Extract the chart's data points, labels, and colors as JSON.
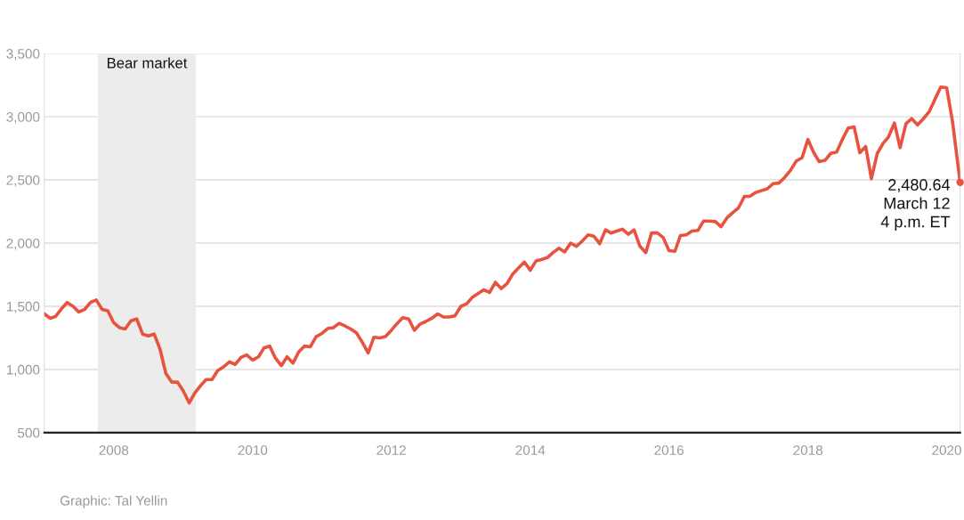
{
  "chart_data": {
    "type": "line",
    "x": [
      "2007-01",
      "2007-02",
      "2007-03",
      "2007-04",
      "2007-05",
      "2007-06",
      "2007-07",
      "2007-08",
      "2007-09",
      "2007-10",
      "2007-11",
      "2007-12",
      "2008-01",
      "2008-02",
      "2008-03",
      "2008-04",
      "2008-05",
      "2008-06",
      "2008-07",
      "2008-08",
      "2008-09",
      "2008-10",
      "2008-11",
      "2008-12",
      "2009-01",
      "2009-02",
      "2009-03",
      "2009-04",
      "2009-05",
      "2009-06",
      "2009-07",
      "2009-08",
      "2009-09",
      "2009-10",
      "2009-11",
      "2009-12",
      "2010-01",
      "2010-02",
      "2010-03",
      "2010-04",
      "2010-05",
      "2010-06",
      "2010-07",
      "2010-08",
      "2010-09",
      "2010-10",
      "2010-11",
      "2010-12",
      "2011-01",
      "2011-02",
      "2011-03",
      "2011-04",
      "2011-05",
      "2011-06",
      "2011-07",
      "2011-08",
      "2011-09",
      "2011-10",
      "2011-11",
      "2011-12",
      "2012-01",
      "2012-02",
      "2012-03",
      "2012-04",
      "2012-05",
      "2012-06",
      "2012-07",
      "2012-08",
      "2012-09",
      "2012-10",
      "2012-11",
      "2012-12",
      "2013-01",
      "2013-02",
      "2013-03",
      "2013-04",
      "2013-05",
      "2013-06",
      "2013-07",
      "2013-08",
      "2013-09",
      "2013-10",
      "2013-11",
      "2013-12",
      "2014-01",
      "2014-02",
      "2014-03",
      "2014-04",
      "2014-05",
      "2014-06",
      "2014-07",
      "2014-08",
      "2014-09",
      "2014-10",
      "2014-11",
      "2014-12",
      "2015-01",
      "2015-02",
      "2015-03",
      "2015-04",
      "2015-05",
      "2015-06",
      "2015-07",
      "2015-08",
      "2015-09",
      "2015-10",
      "2015-11",
      "2015-12",
      "2016-01",
      "2016-02",
      "2016-03",
      "2016-04",
      "2016-05",
      "2016-06",
      "2016-07",
      "2016-08",
      "2016-09",
      "2016-10",
      "2016-11",
      "2016-12",
      "2017-01",
      "2017-02",
      "2017-03",
      "2017-04",
      "2017-05",
      "2017-06",
      "2017-07",
      "2017-08",
      "2017-09",
      "2017-10",
      "2017-11",
      "2017-12",
      "2018-01",
      "2018-02",
      "2018-03",
      "2018-04",
      "2018-05",
      "2018-06",
      "2018-07",
      "2018-08",
      "2018-09",
      "2018-10",
      "2018-11",
      "2018-12",
      "2019-01",
      "2019-02",
      "2019-03",
      "2019-04",
      "2019-05",
      "2019-06",
      "2019-07",
      "2019-08",
      "2019-09",
      "2019-10",
      "2019-11",
      "2019-12",
      "2020-01",
      "2020-02",
      "2020-03-12"
    ],
    "series": [
      {
        "color": "#e8533f",
        "values": [
          1440,
          1405,
          1420,
          1480,
          1530,
          1500,
          1455,
          1475,
          1530,
          1550,
          1475,
          1465,
          1370,
          1330,
          1320,
          1385,
          1400,
          1280,
          1265,
          1280,
          1160,
          970,
          900,
          900,
          830,
          735,
          810,
          870,
          920,
          920,
          990,
          1020,
          1060,
          1040,
          1095,
          1115,
          1075,
          1100,
          1170,
          1185,
          1090,
          1030,
          1100,
          1050,
          1140,
          1185,
          1180,
          1260,
          1285,
          1325,
          1330,
          1365,
          1345,
          1320,
          1290,
          1215,
          1130,
          1255,
          1250,
          1260,
          1310,
          1365,
          1410,
          1400,
          1310,
          1360,
          1380,
          1405,
          1440,
          1415,
          1415,
          1425,
          1500,
          1520,
          1570,
          1600,
          1630,
          1610,
          1690,
          1640,
          1680,
          1755,
          1805,
          1850,
          1785,
          1860,
          1870,
          1885,
          1925,
          1960,
          1930,
          2000,
          1975,
          2015,
          2065,
          2055,
          1995,
          2105,
          2080,
          2095,
          2110,
          2070,
          2105,
          1975,
          1925,
          2080,
          2080,
          2045,
          1940,
          1935,
          2060,
          2065,
          2095,
          2100,
          2175,
          2175,
          2170,
          2130,
          2200,
          2240,
          2280,
          2370,
          2370,
          2400,
          2415,
          2430,
          2470,
          2475,
          2520,
          2575,
          2650,
          2675,
          2820,
          2715,
          2645,
          2655,
          2710,
          2720,
          2820,
          2910,
          2920,
          2715,
          2765,
          2510,
          2710,
          2790,
          2840,
          2950,
          2755,
          2945,
          2985,
          2935,
          2985,
          3040,
          3140,
          3235,
          3230,
          2960,
          2480.64
        ]
      }
    ],
    "xlim": [
      "2007-01-01",
      "2020-03-12"
    ],
    "xticks": [
      "2008",
      "2010",
      "2012",
      "2014",
      "2016",
      "2018",
      "2020"
    ],
    "ylim": [
      500,
      3500
    ],
    "yticks": [
      500,
      {
        "value": 1000,
        "label": "1,000"
      },
      {
        "value": 1500,
        "label": "1,500"
      },
      {
        "value": 2000,
        "label": "2,000"
      },
      {
        "value": 2500,
        "label": "2,500"
      },
      {
        "value": 3000,
        "label": "3,000"
      },
      {
        "value": 3500,
        "label": "3,500"
      }
    ],
    "grid": "y",
    "bands": [
      {
        "axis": "x",
        "from": "2007-10-09",
        "to": "2009-03-09",
        "label": "Bear market",
        "color": "#ececec"
      }
    ],
    "annotations": [
      {
        "text": "2,480.64\nMarch 12\n4 p.m. ET",
        "x": "2020-03-12",
        "y": 2480.64
      },
      "Graphic: Tal Yellin"
    ]
  }
}
